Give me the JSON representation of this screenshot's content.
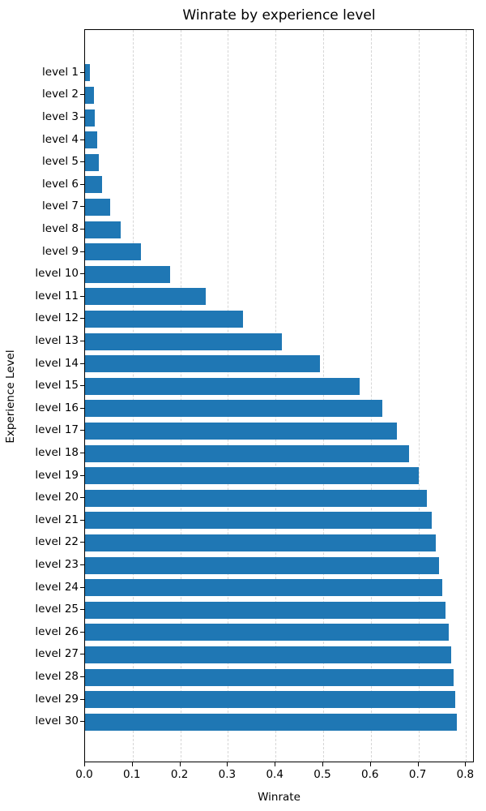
{
  "accent_color": "#1f77b4",
  "gridline_color": "#d6d6d6",
  "chart_data": {
    "type": "bar",
    "orientation": "horizontal",
    "title": "Winrate by experience level",
    "xlabel": "Winrate",
    "ylabel": "Experience Level",
    "categories": [
      "level 1",
      "level 2",
      "level 3",
      "level 4",
      "level 5",
      "level 6",
      "level 7",
      "level 8",
      "level 9",
      "level 10",
      "level 11",
      "level 12",
      "level 13",
      "level 14",
      "level 15",
      "level 16",
      "level 17",
      "level 18",
      "level 19",
      "level 20",
      "level 21",
      "level 22",
      "level 23",
      "level 24",
      "level 25",
      "level 26",
      "level 27",
      "level 28",
      "level 29",
      "level 30"
    ],
    "values": [
      0.011,
      0.019,
      0.021,
      0.025,
      0.029,
      0.036,
      0.052,
      0.075,
      0.117,
      0.179,
      0.253,
      0.332,
      0.413,
      0.493,
      0.577,
      0.624,
      0.655,
      0.681,
      0.7,
      0.717,
      0.728,
      0.737,
      0.744,
      0.75,
      0.757,
      0.764,
      0.769,
      0.774,
      0.778,
      0.78
    ],
    "xlim": [
      0.0,
      0.818
    ],
    "xtick_labels": [
      "0.0",
      "0.1",
      "0.2",
      "0.3",
      "0.4",
      "0.5",
      "0.6",
      "0.7",
      "0.8"
    ],
    "xtick_values": [
      0.0,
      0.1,
      0.2,
      0.3,
      0.4,
      0.5,
      0.6,
      0.7,
      0.8
    ],
    "grid": "vertical-dashed",
    "legend": "none",
    "bar_color": "#1f77b4"
  }
}
